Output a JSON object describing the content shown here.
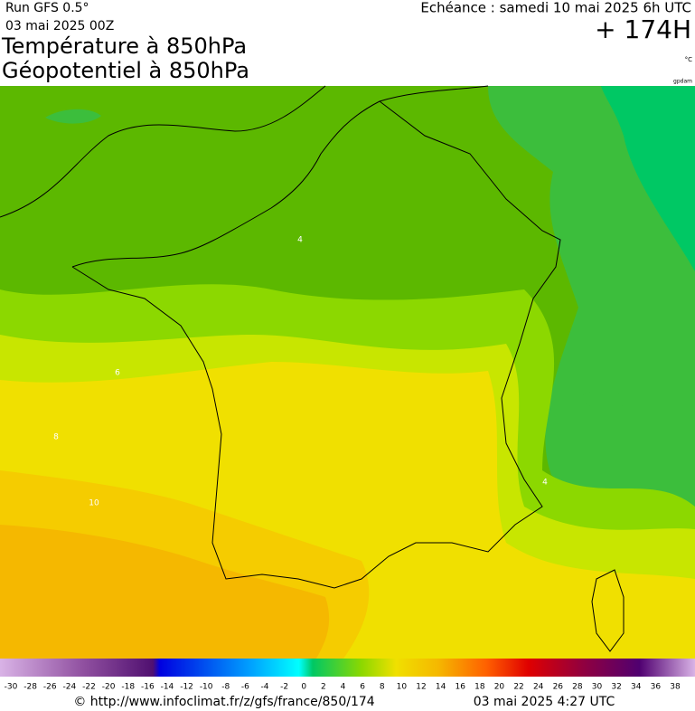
{
  "header": {
    "run": "Run GFS 0.5°",
    "run_date": "03 mai 2025 00Z",
    "title_1": "Température à 850hPa",
    "title_2": "Géopotentiel à 850hPa",
    "valid": "Echéance : samedi 10 mai 2025 6h UTC",
    "lead": "+ 174H",
    "unit": "°C",
    "credit": "gpdam"
  },
  "map": {
    "contour_labels": [
      4,
      6,
      8,
      10,
      4
    ]
  },
  "colorbar": {
    "ticks": [
      -30,
      -28,
      -26,
      -24,
      -22,
      -20,
      -18,
      -16,
      -14,
      -12,
      -10,
      -8,
      -6,
      -4,
      -2,
      0,
      2,
      4,
      6,
      8,
      10,
      12,
      14,
      16,
      18,
      20,
      22,
      24,
      26,
      28,
      30,
      32,
      34,
      36,
      38
    ]
  },
  "footer": {
    "url": "© http://www.infoclimat.fr/z/gfs/france/850/174",
    "stamp": "03 mai 2025  4:27 UTC"
  }
}
